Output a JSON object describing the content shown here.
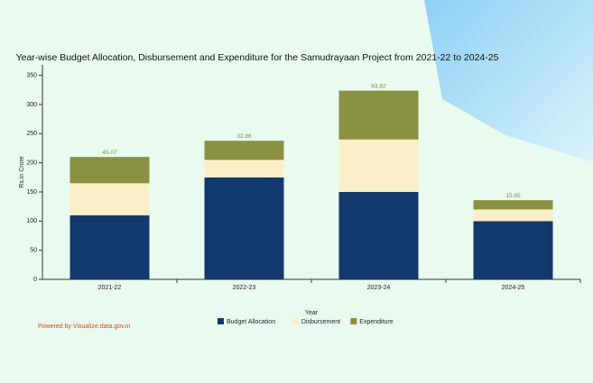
{
  "chart_data": {
    "type": "stacked-bar",
    "title": "Year-wise Budget Allocation, Disbursement and Expenditure for the Samudrayaan Project from 2021-22 to 2024-25",
    "x_label": "Year",
    "y_label": "Rs.in Crore",
    "categories": [
      "2021-22",
      "2022-23",
      "2023-24",
      "2024-25"
    ],
    "series": [
      {
        "name": "Budget Allocation",
        "color": "#13386b",
        "values": [
          110,
          175,
          150,
          100
        ]
      },
      {
        "name": "Disbursement",
        "color": "#fbefc8",
        "values": [
          55,
          30,
          90,
          20
        ]
      },
      {
        "name": "Expenditure",
        "color": "#8a9142",
        "values": [
          45.07,
          32.86,
          83.82,
          15.85
        ]
      }
    ],
    "ylim": [
      0,
      368
    ],
    "yticks": [
      0,
      50,
      100,
      150,
      200,
      250,
      300,
      350
    ],
    "legend": "bottom",
    "credit": "Powered by Visualize.data.gov.in"
  }
}
